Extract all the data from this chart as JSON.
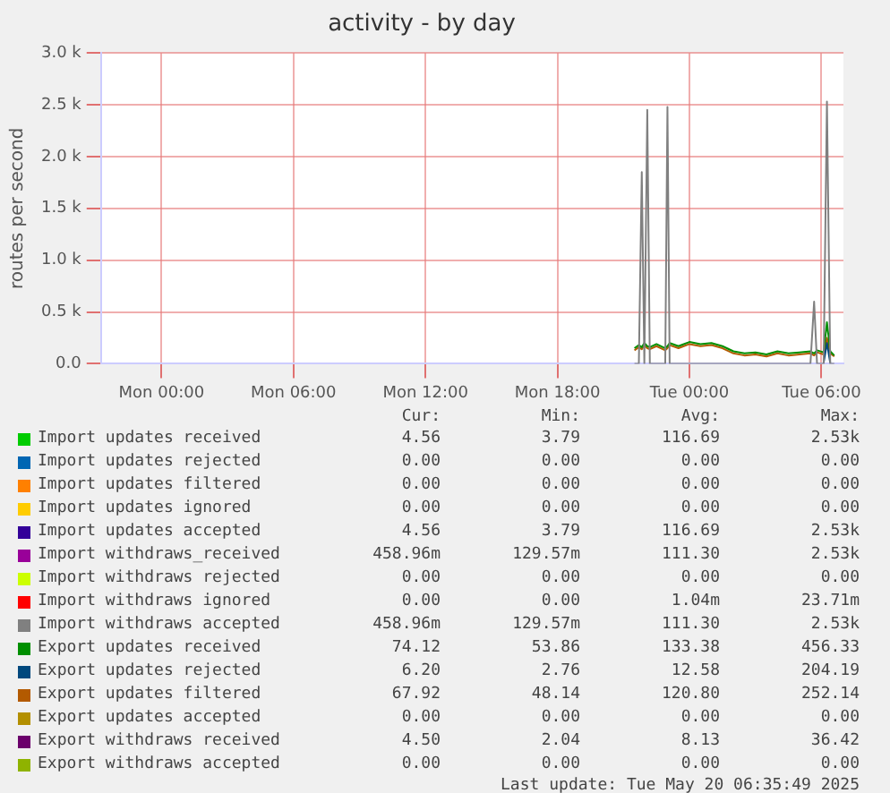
{
  "chart_data": {
    "type": "line",
    "title": "activity - by day",
    "ylabel": "routes per second",
    "x": [
      "2025-05-19T21:30",
      "2025-05-19T21:42",
      "2025-05-19T21:50",
      "2025-05-19T21:57",
      "2025-05-19T22:05",
      "2025-05-19T22:12",
      "2025-05-19T22:30",
      "2025-05-19T22:54",
      "2025-05-19T23:00",
      "2025-05-19T23:06",
      "2025-05-19T23:30",
      "2025-05-20T00:00",
      "2025-05-20T00:30",
      "2025-05-20T01:00",
      "2025-05-20T01:30",
      "2025-05-20T02:00",
      "2025-05-20T02:30",
      "2025-05-20T03:00",
      "2025-05-20T03:30",
      "2025-05-20T04:00",
      "2025-05-20T04:30",
      "2025-05-20T05:00",
      "2025-05-20T05:30",
      "2025-05-20T05:40",
      "2025-05-20T05:48",
      "2025-05-20T06:06",
      "2025-05-20T06:15",
      "2025-05-20T06:24",
      "2025-05-20T06:35"
    ],
    "xlim": [
      "2025-05-18T21:15",
      "2025-05-20T07:00"
    ],
    "xticks": [
      {
        "value": "2025-05-19T00:00",
        "label": "Mon 00:00"
      },
      {
        "value": "2025-05-19T06:00",
        "label": "Mon 06:00"
      },
      {
        "value": "2025-05-19T12:00",
        "label": "Mon 12:00"
      },
      {
        "value": "2025-05-19T18:00",
        "label": "Mon 18:00"
      },
      {
        "value": "2025-05-20T00:00",
        "label": "Tue 00:00"
      },
      {
        "value": "2025-05-20T06:00",
        "label": "Tue 06:00"
      }
    ],
    "ylim": [
      0,
      3000
    ],
    "yticks": [
      {
        "value": 0,
        "label": "0.0"
      },
      {
        "value": 500,
        "label": "0.5 k"
      },
      {
        "value": 1000,
        "label": "1.0 k"
      },
      {
        "value": 1500,
        "label": "1.5 k"
      },
      {
        "value": 2000,
        "label": "2.0 k"
      },
      {
        "value": 2500,
        "label": "2.5 k"
      },
      {
        "value": 3000,
        "label": "3.0 k"
      }
    ],
    "grid": true,
    "legend": "bottom",
    "marker": "none",
    "line_style": "solid",
    "series": [
      {
        "name": "Import updates received",
        "color": "#00cc00",
        "values": [
          null,
          null,
          null,
          null,
          null,
          null,
          null,
          null,
          null,
          null,
          null,
          null,
          null,
          null,
          null,
          null,
          null,
          null,
          null,
          null,
          null,
          null,
          null,
          null,
          null,
          null,
          null,
          null,
          null
        ]
      },
      {
        "name": "Import updates rejected",
        "color": "#0066b3",
        "values": [
          null,
          null,
          null,
          null,
          null,
          null,
          null,
          null,
          null,
          null,
          null,
          null,
          null,
          null,
          null,
          null,
          null,
          null,
          null,
          null,
          null,
          null,
          null,
          null,
          null,
          null,
          null,
          null,
          null
        ]
      },
      {
        "name": "Import updates filtered",
        "color": "#ff8000",
        "values": [
          null,
          null,
          null,
          null,
          null,
          null,
          null,
          null,
          null,
          null,
          null,
          null,
          null,
          null,
          null,
          null,
          null,
          null,
          null,
          null,
          null,
          null,
          null,
          null,
          null,
          null,
          null,
          null,
          null
        ]
      },
      {
        "name": "Import updates ignored",
        "color": "#ffcc00",
        "values": [
          null,
          null,
          null,
          null,
          null,
          null,
          null,
          null,
          null,
          null,
          null,
          null,
          null,
          null,
          null,
          null,
          null,
          null,
          null,
          null,
          null,
          null,
          null,
          null,
          null,
          null,
          null,
          null,
          null
        ]
      },
      {
        "name": "Import updates accepted",
        "color": "#330099",
        "values": [
          null,
          null,
          null,
          null,
          null,
          null,
          null,
          null,
          null,
          null,
          null,
          null,
          null,
          null,
          null,
          null,
          null,
          null,
          null,
          null,
          null,
          null,
          null,
          null,
          null,
          null,
          null,
          null,
          null
        ]
      },
      {
        "name": "Import withdraws_received",
        "color": "#990099",
        "values": [
          null,
          null,
          null,
          null,
          null,
          null,
          null,
          null,
          null,
          null,
          null,
          null,
          null,
          null,
          null,
          null,
          null,
          null,
          null,
          null,
          null,
          null,
          null,
          null,
          null,
          null,
          null,
          null,
          null
        ]
      },
      {
        "name": "Import withdraws rejected",
        "color": "#ccff00",
        "values": [
          null,
          null,
          null,
          null,
          null,
          null,
          null,
          null,
          null,
          null,
          null,
          null,
          null,
          null,
          null,
          null,
          null,
          null,
          null,
          null,
          null,
          null,
          null,
          null,
          null,
          null,
          null,
          null,
          null
        ]
      },
      {
        "name": "Import withdraws ignored",
        "color": "#ff0000",
        "values": [
          null,
          null,
          null,
          null,
          null,
          null,
          null,
          null,
          null,
          null,
          null,
          null,
          null,
          null,
          null,
          null,
          null,
          null,
          null,
          null,
          null,
          null,
          null,
          null,
          null,
          null,
          null,
          null,
          null
        ]
      },
      {
        "name": "Import withdraws accepted",
        "color": "#808080",
        "values": [
          0,
          0,
          1850,
          0,
          2450,
          0,
          0,
          0,
          2480,
          0,
          0,
          0,
          0,
          0,
          0,
          0,
          0,
          0,
          0,
          0,
          0,
          0,
          0,
          600,
          0,
          0,
          2530,
          0,
          0
        ]
      },
      {
        "name": "Export updates received",
        "color": "#008f00",
        "values": [
          150,
          180,
          160,
          200,
          170,
          160,
          190,
          150,
          170,
          200,
          170,
          210,
          190,
          200,
          170,
          120,
          100,
          110,
          90,
          120,
          100,
          110,
          120,
          100,
          130,
          110,
          400,
          120,
          80
        ]
      },
      {
        "name": "Export updates rejected",
        "color": "#00487d",
        "values": [
          null,
          null,
          null,
          null,
          null,
          null,
          null,
          null,
          null,
          null,
          null,
          null,
          null,
          null,
          null,
          null,
          null,
          null,
          null,
          null,
          null,
          null,
          null,
          null,
          null,
          10,
          200,
          10,
          null
        ]
      },
      {
        "name": "Export updates filtered",
        "color": "#b35a00",
        "values": [
          130,
          160,
          140,
          180,
          150,
          140,
          170,
          130,
          150,
          180,
          150,
          190,
          170,
          180,
          150,
          100,
          80,
          90,
          70,
          100,
          80,
          90,
          100,
          80,
          110,
          90,
          250,
          100,
          70
        ]
      },
      {
        "name": "Export updates accepted",
        "color": "#b38f00",
        "values": [
          null,
          null,
          null,
          null,
          null,
          null,
          null,
          null,
          null,
          null,
          null,
          null,
          null,
          null,
          null,
          null,
          null,
          null,
          null,
          null,
          null,
          null,
          null,
          null,
          null,
          null,
          null,
          null,
          null
        ]
      },
      {
        "name": "Export withdraws received",
        "color": "#6b006b",
        "values": [
          null,
          null,
          null,
          null,
          null,
          null,
          null,
          null,
          null,
          null,
          null,
          null,
          null,
          null,
          null,
          null,
          null,
          null,
          null,
          null,
          null,
          null,
          null,
          null,
          null,
          null,
          null,
          null,
          null
        ]
      },
      {
        "name": "Export withdraws accepted",
        "color": "#8fb300",
        "values": [
          null,
          null,
          null,
          null,
          null,
          null,
          null,
          null,
          null,
          null,
          null,
          null,
          null,
          null,
          null,
          null,
          null,
          null,
          null,
          null,
          null,
          null,
          null,
          null,
          null,
          null,
          null,
          null,
          null
        ]
      }
    ],
    "annotations": [
      "Cur:",
      "Min:",
      "Avg:",
      "Max:",
      "4.56",
      "3.79",
      "116.69",
      "2.53k",
      "0.00",
      "0.00",
      "0.00",
      "0.00",
      "0.00",
      "0.00",
      "0.00",
      "0.00",
      "0.00",
      "0.00",
      "0.00",
      "0.00",
      "4.56",
      "3.79",
      "116.69",
      "2.53k",
      "458.96m",
      "129.57m",
      "111.30",
      "2.53k",
      "0.00",
      "0.00",
      "0.00",
      "0.00",
      "0.00",
      "0.00",
      "1.04m",
      "23.71m",
      "458.96m",
      "129.57m",
      "111.30",
      "2.53k",
      "74.12",
      "53.86",
      "133.38",
      "456.33",
      "6.20",
      "2.76",
      "12.58",
      "204.19",
      "67.92",
      "48.14",
      "120.80",
      "252.14",
      "0.00",
      "0.00",
      "0.00",
      "0.00",
      "4.50",
      "2.04",
      "8.13",
      "36.42",
      "0.00",
      "0.00",
      "0.00",
      "0.00",
      "Last update: Tue May 20 06:35:49 2025"
    ]
  }
}
